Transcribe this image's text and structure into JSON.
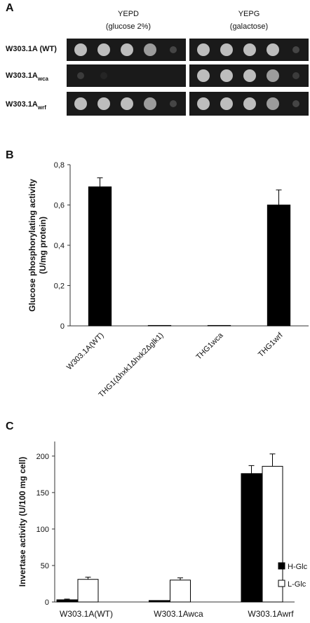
{
  "panel_a": {
    "panel_label": "A",
    "columns": [
      {
        "title": "YEPD",
        "subtitle": "(glucose 2%)"
      },
      {
        "title": "YEPG",
        "subtitle": "(galactose)"
      }
    ],
    "rows": [
      {
        "label": "W303.1A (WT)"
      },
      {
        "label": "W303.1A",
        "sub": "wca"
      },
      {
        "label": "W303.1A",
        "sub": "wrf"
      }
    ]
  },
  "chart_data": [
    {
      "type": "bar",
      "panel_label": "B",
      "ylabel": [
        "Glucose phosphorylating  activity",
        "(U/mg protein)"
      ],
      "categories": [
        "W303.1A(WT)",
        "THG1(Δhxk1Δhxk2Δglk1)",
        "THG1wca",
        "THG1wrf"
      ],
      "values": [
        0.69,
        0.002,
        0.002,
        0.6
      ],
      "errors": [
        0.045,
        0,
        0,
        0.075
      ],
      "color": "#000000",
      "ylim": [
        0,
        0.8
      ],
      "yticks": [
        0,
        {
          "value": 0.2,
          "label": "0,2"
        },
        {
          "value": 0.4,
          "label": "0,4"
        },
        {
          "value": 0.6,
          "label": "0,6"
        },
        {
          "value": 0.8,
          "label": "0,8"
        }
      ]
    },
    {
      "type": "grouped_bar",
      "panel_label": "C",
      "ylabel": "Invertase activity (U/100 mg cell)",
      "categories": [
        "W303.1A(WT)",
        "W303.1Awca",
        "W303.1Awrf"
      ],
      "series": [
        {
          "name": "H-Glc",
          "color": "#000000",
          "values": [
            3,
            2,
            176
          ],
          "errors": [
            1,
            0,
            11
          ]
        },
        {
          "name": "L-Glc",
          "color": "#ffffff",
          "values": [
            31,
            30,
            186
          ],
          "errors": [
            3,
            3,
            17
          ]
        }
      ],
      "ylim": [
        0,
        220
      ],
      "yticks": [
        0,
        50,
        100,
        150,
        200
      ],
      "legend": "right"
    }
  ]
}
